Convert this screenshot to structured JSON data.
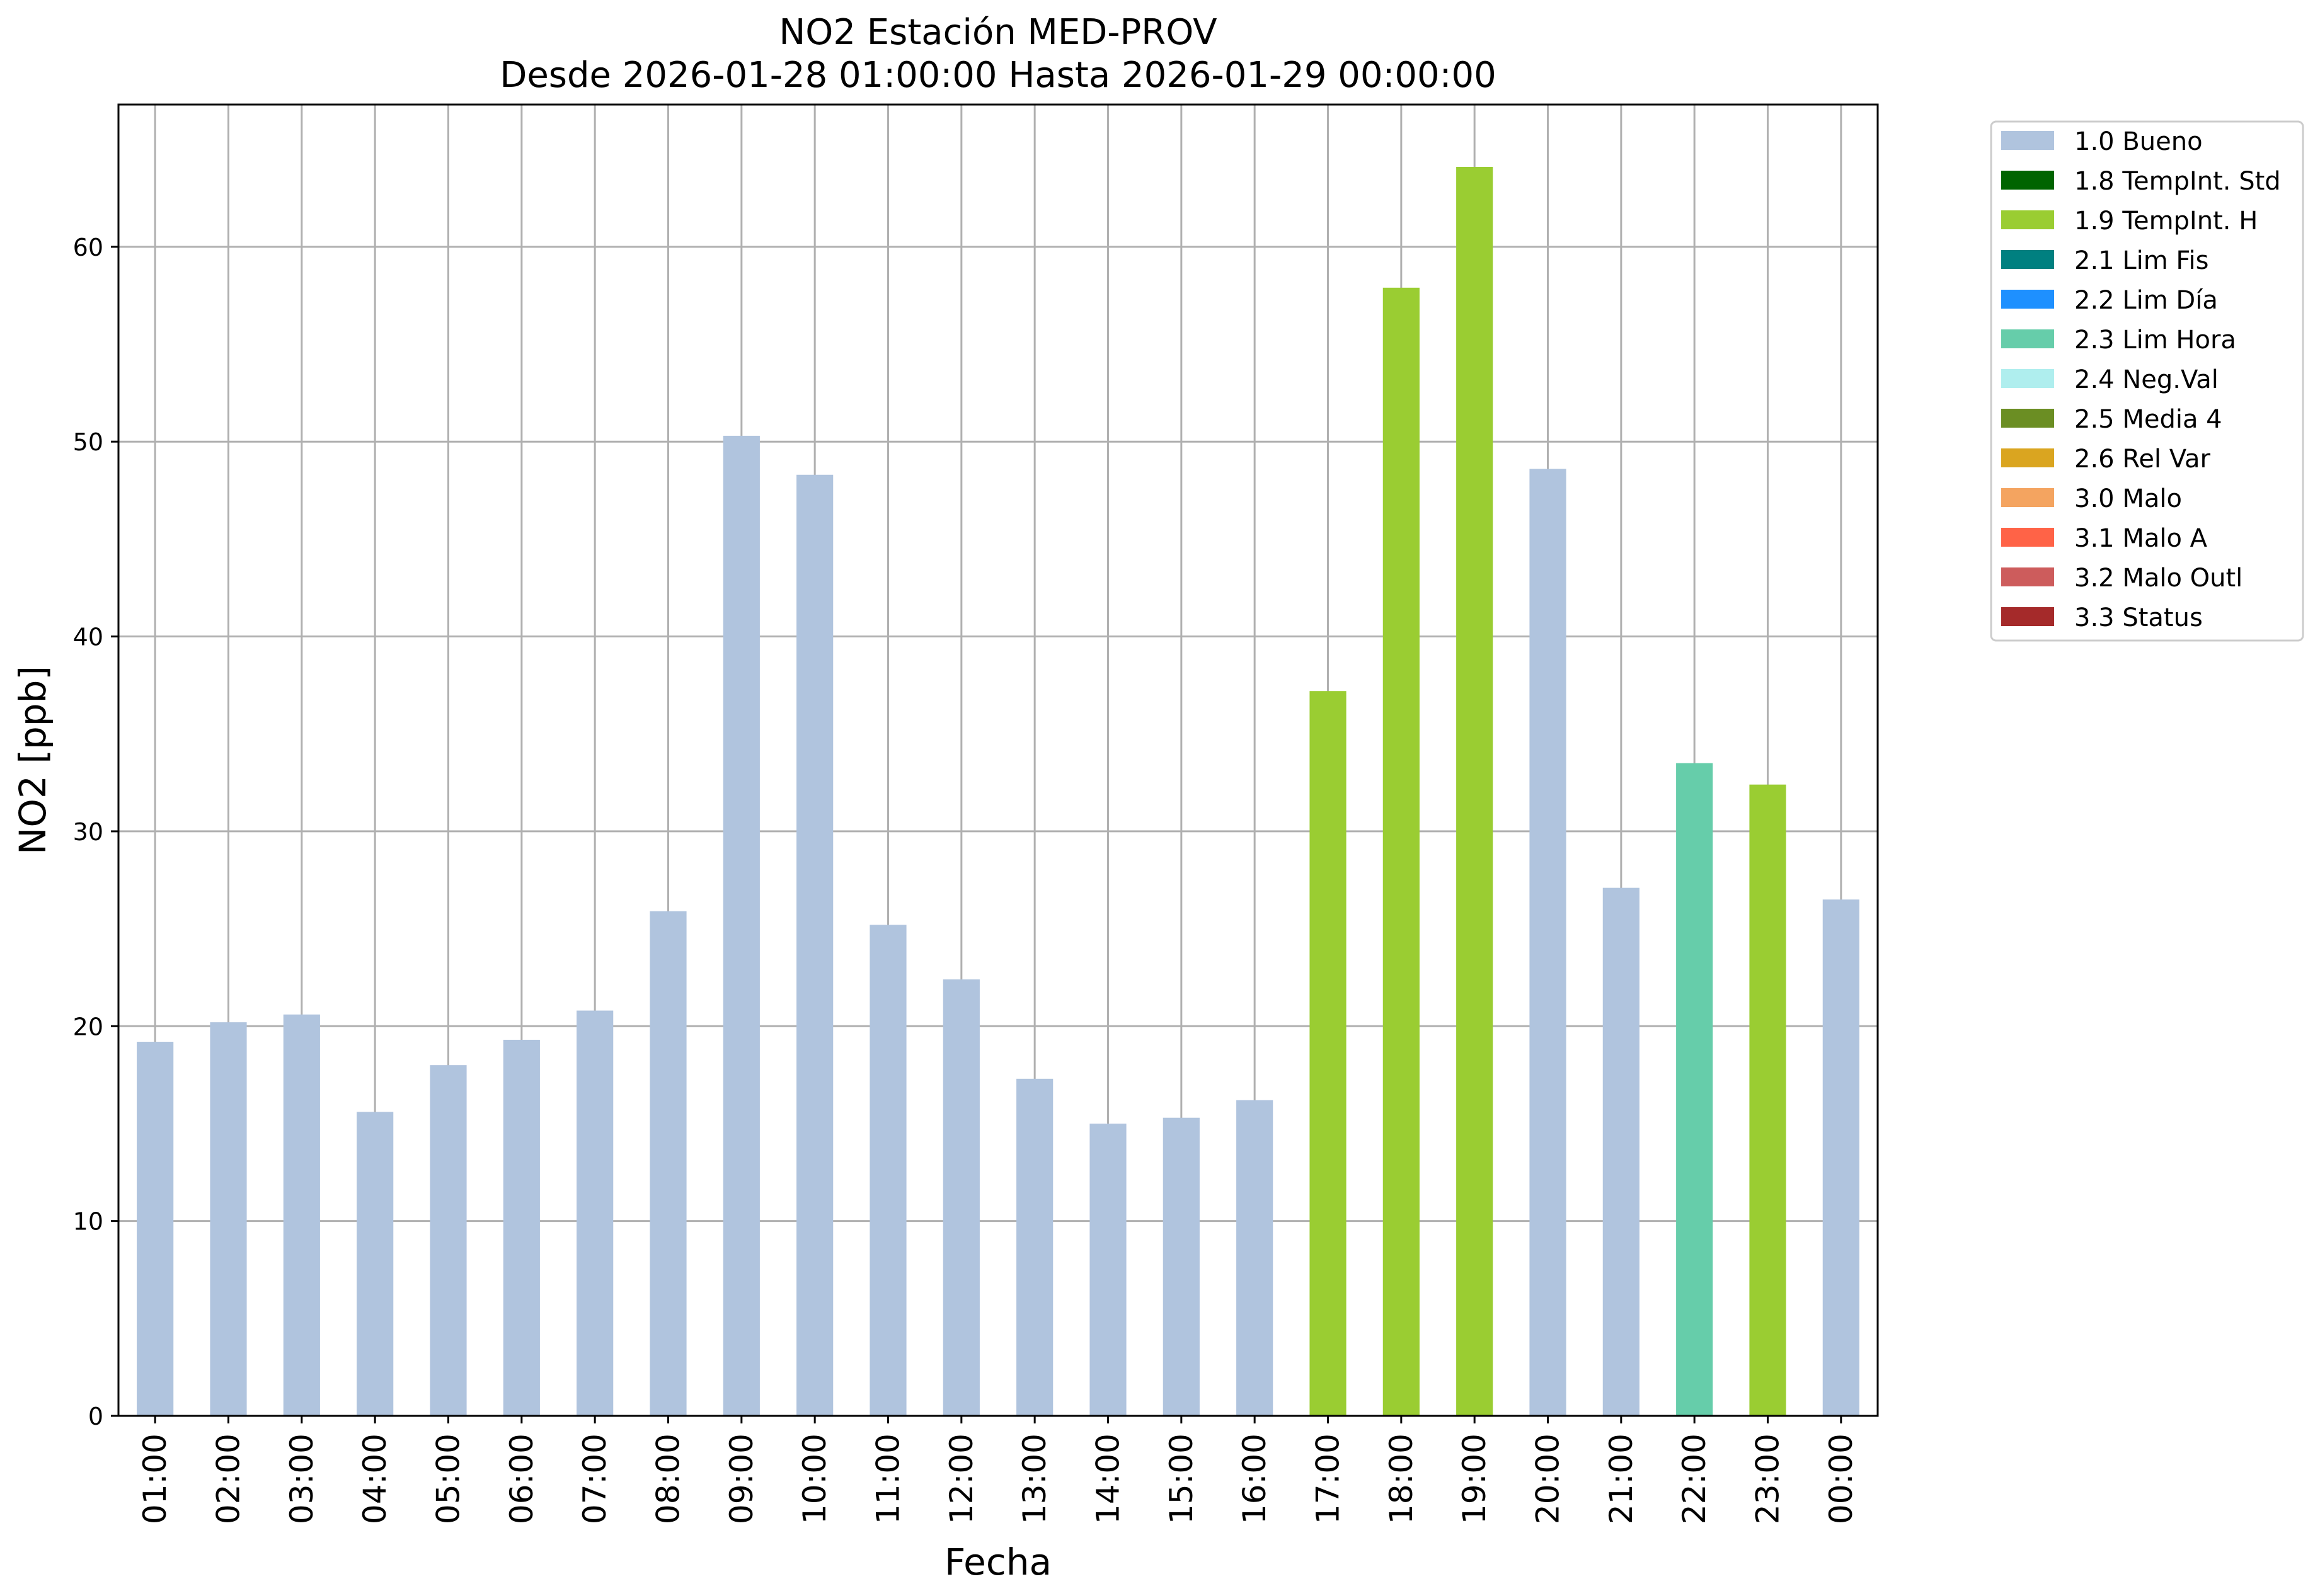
{
  "chart_data": {
    "type": "bar",
    "title": "NO2 Estación MED-PROV",
    "subtitle": "Desde 2026-01-28 01:00:00 Hasta 2026-01-29 00:00:00",
    "xlabel": "Fecha",
    "ylabel": "NO2 [ppb]",
    "ylim": [
      0,
      67.3
    ],
    "yticks": [
      0,
      10,
      20,
      30,
      40,
      50,
      60
    ],
    "grid": true,
    "legend_position": "outside-right-top",
    "categories": [
      "01:00",
      "02:00",
      "03:00",
      "04:00",
      "05:00",
      "06:00",
      "07:00",
      "08:00",
      "09:00",
      "10:00",
      "11:00",
      "12:00",
      "13:00",
      "14:00",
      "15:00",
      "16:00",
      "17:00",
      "18:00",
      "19:00",
      "20:00",
      "21:00",
      "22:00",
      "23:00",
      "00:00"
    ],
    "values": [
      19.2,
      20.2,
      20.6,
      15.6,
      18.0,
      19.3,
      20.8,
      25.9,
      50.3,
      48.3,
      25.2,
      22.4,
      17.3,
      15.0,
      15.3,
      16.2,
      37.2,
      57.9,
      64.1,
      48.6,
      27.1,
      33.5,
      32.4,
      26.5
    ],
    "flags": [
      "1.0 Bueno",
      "1.0 Bueno",
      "1.0 Bueno",
      "1.0 Bueno",
      "1.0 Bueno",
      "1.0 Bueno",
      "1.0 Bueno",
      "1.0 Bueno",
      "1.0 Bueno",
      "1.0 Bueno",
      "1.0 Bueno",
      "1.0 Bueno",
      "1.0 Bueno",
      "1.0 Bueno",
      "1.0 Bueno",
      "1.0 Bueno",
      "1.9 TempInt. H",
      "1.9 TempInt. H",
      "1.9 TempInt. H",
      "1.0 Bueno",
      "1.0 Bueno",
      "2.3 Lim Hora",
      "1.9 TempInt. H",
      "1.0 Bueno"
    ],
    "legend": [
      {
        "label": "1.0 Bueno",
        "color": "#b0c4de"
      },
      {
        "label": "1.8 TempInt. Std",
        "color": "#006400"
      },
      {
        "label": "1.9 TempInt. H",
        "color": "#9acd32"
      },
      {
        "label": "2.1 Lim Fis",
        "color": "#008080"
      },
      {
        "label": "2.2 Lim Día",
        "color": "#1e90ff"
      },
      {
        "label": "2.3 Lim Hora",
        "color": "#66cdaa"
      },
      {
        "label": "2.4 Neg.Val",
        "color": "#afeeee"
      },
      {
        "label": "2.5 Media 4",
        "color": "#6b8e23"
      },
      {
        "label": "2.6 Rel Var",
        "color": "#daa520"
      },
      {
        "label": "3.0 Malo",
        "color": "#f4a460"
      },
      {
        "label": "3.1 Malo A",
        "color": "#ff6347"
      },
      {
        "label": "3.2 Malo Outl",
        "color": "#cd5c5c"
      },
      {
        "label": "3.3 Status",
        "color": "#a52a2a"
      }
    ]
  },
  "colors": {
    "grid": "#b0b0b0",
    "axis": "#000000"
  }
}
